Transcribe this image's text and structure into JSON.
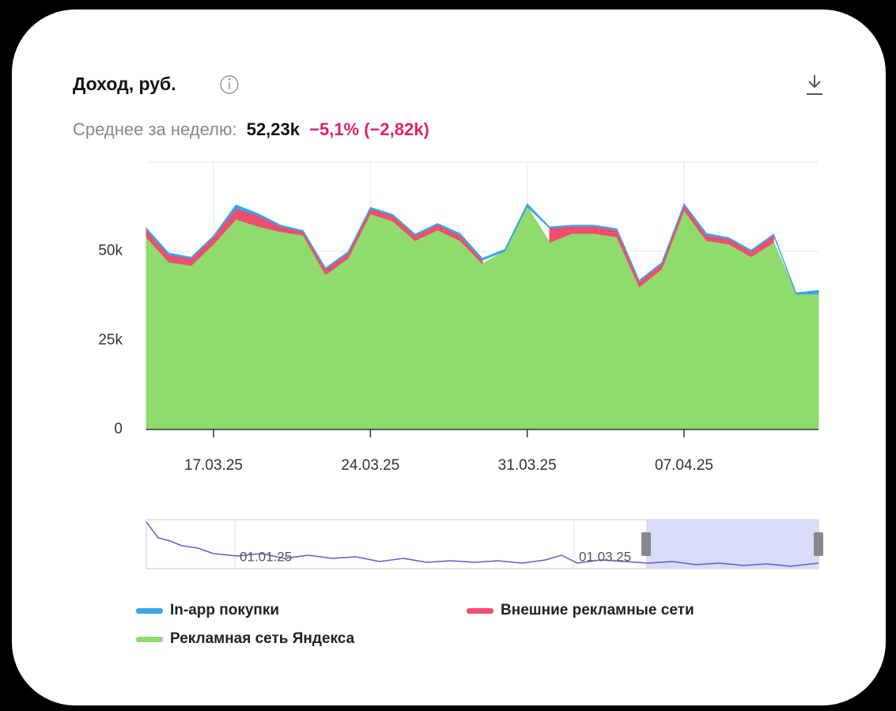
{
  "chart_data": {
    "type": "stacked_area",
    "title": "Доход, руб.",
    "summary_label": "Среднее за неделю:",
    "summary_value": "52,23k",
    "summary_change": "−5,1% (−2,82k)",
    "categories": [
      null,
      null,
      null,
      "17.03.25",
      null,
      null,
      null,
      null,
      null,
      null,
      "24.03.25",
      null,
      null,
      null,
      null,
      null,
      null,
      "31.03.25",
      null,
      null,
      null,
      null,
      null,
      null,
      "07.04.25",
      null,
      null,
      null,
      null,
      null,
      null
    ],
    "series": [
      {
        "name": "In-app покупки",
        "color": "#3aa6e6",
        "values": [
          500,
          500,
          300,
          300,
          1000,
          500,
          300,
          300,
          300,
          300,
          300,
          300,
          300,
          300,
          500,
          500,
          500,
          800,
          300,
          300,
          300,
          300,
          300,
          300,
          300,
          500,
          300,
          300,
          300,
          300,
          1000
        ]
      },
      {
        "name": "Внешние рекламные сети",
        "color": "#ef4f6d",
        "values": [
          2000,
          2000,
          2000,
          2000,
          3000,
          3000,
          1500,
          1000,
          1500,
          1500,
          1500,
          1500,
          1500,
          1500,
          1500,
          1000,
          null,
          null,
          4000,
          2000,
          2000,
          2000,
          1500,
          1500,
          1500,
          1500,
          1500,
          1500,
          2000,
          null,
          null
        ]
      },
      {
        "name": "Рекламная сеть Яндекса",
        "color": "#8fdb6d",
        "values": [
          54000,
          47000,
          46000,
          52000,
          59000,
          57000,
          55500,
          54500,
          43500,
          48000,
          60500,
          58500,
          53000,
          56000,
          53000,
          46500,
          50000,
          62500,
          52500,
          55000,
          55000,
          54000,
          40000,
          45000,
          61500,
          53000,
          52000,
          48500,
          52500,
          38000,
          38000
        ]
      }
    ],
    "ylim": [
      0,
      75000
    ],
    "yticks": [
      {
        "value": 0,
        "label": "0"
      },
      {
        "value": 25000,
        "label": "25k"
      },
      {
        "value": 50000,
        "label": "50k"
      }
    ],
    "grid": true,
    "navigator_labels": [
      "01.01.25",
      "01.03.25"
    ]
  }
}
